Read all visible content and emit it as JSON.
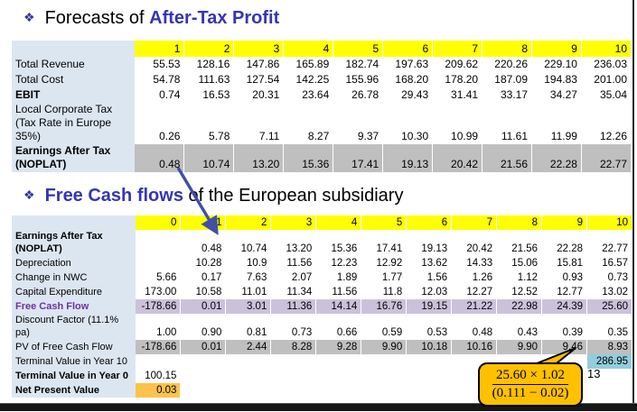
{
  "page": {
    "number": "13"
  },
  "titles": {
    "title1": {
      "bullet": "❖",
      "prefix": "Forecasts of ",
      "highlight": "After-Tax Profit"
    },
    "title2": {
      "bullet": "❖",
      "highlight": "Free Cash flows",
      "suffix": " of the European subsidiary"
    }
  },
  "colors": {
    "label_column_bg": "#DCE6F1",
    "header_bg": "#FFFF00",
    "gray_row_bg": "#BFBFBF",
    "lavender_row_bg": "#CCC1DA",
    "teal_cell_bg": "#93CDDD",
    "amber_cell_bg": "#FBC34B",
    "title_highlight": "#3535B5",
    "purple_label": "#7030A0",
    "arrow_blue": "#3F4FA8",
    "callout_fill": "#FFC000"
  },
  "tables": {
    "after_tax_profit": {
      "label_col_width": 136,
      "header": [
        "1",
        "2",
        "3",
        "4",
        "5",
        "6",
        "7",
        "8",
        "9",
        "10"
      ],
      "rows": [
        {
          "label": "Total Revenue",
          "values": [
            "55.53",
            "128.16",
            "147.86",
            "165.89",
            "182.74",
            "197.63",
            "209.62",
            "220.26",
            "229.10",
            "236.03"
          ]
        },
        {
          "label": "Total Cost",
          "values": [
            "54.78",
            "111.63",
            "127.54",
            "142.25",
            "155.96",
            "168.20",
            "178.20",
            "187.09",
            "194.83",
            "201.00"
          ]
        },
        {
          "label": "EBIT",
          "bold": true,
          "values": [
            "0.74",
            "16.53",
            "20.31",
            "23.64",
            "26.78",
            "29.43",
            "31.41",
            "33.17",
            "34.27",
            "35.04"
          ]
        },
        {
          "label": "Local Corporate Tax (Tax Rate in Europe 35%)",
          "values": [
            "0.26",
            "5.78",
            "7.11",
            "8.27",
            "9.37",
            "10.30",
            "10.99",
            "11.61",
            "11.99",
            "12.26"
          ]
        },
        {
          "label": "Earnings After Tax (NOPLAT)",
          "bold": true,
          "data_bg": "gray",
          "values": [
            "0.48",
            "10.74",
            "13.20",
            "15.36",
            "17.41",
            "19.13",
            "20.42",
            "21.56",
            "22.28",
            "22.77"
          ]
        }
      ]
    },
    "free_cash_flows": {
      "label_col_width": 137,
      "header": [
        "0",
        "1",
        "2",
        "3",
        "4",
        "5",
        "6",
        "7",
        "8",
        "9",
        "10"
      ],
      "rows": [
        {
          "label": "Earnings After Tax (NOPLAT)",
          "bold": true,
          "values": [
            "",
            "0.48",
            "10.74",
            "13.20",
            "15.36",
            "17.41",
            "19.13",
            "20.42",
            "21.56",
            "22.28",
            "22.77"
          ]
        },
        {
          "label": "Depreciation",
          "values": [
            "",
            "10.28",
            "10.9",
            "11.56",
            "12.23",
            "12.92",
            "13.62",
            "14.33",
            "15.06",
            "15.81",
            "16.57"
          ]
        },
        {
          "label": "Change in NWC",
          "values": [
            "5.66",
            "0.17",
            "7.63",
            "2.07",
            "1.89",
            "1.77",
            "1.56",
            "1.26",
            "1.12",
            "0.93",
            "0.73"
          ]
        },
        {
          "label": "Capital Expenditure",
          "values": [
            "173.00",
            "10.58",
            "11.01",
            "11.34",
            "11.56",
            "11.8",
            "12.03",
            "12.27",
            "12.52",
            "12.77",
            "13.02"
          ]
        },
        {
          "label": "Free Cash Flow",
          "bold": true,
          "label_class": "label-purple",
          "data_bg": "lavender",
          "values": [
            "-178.66",
            "0.01",
            "3.01",
            "11.36",
            "14.14",
            "16.76",
            "19.15",
            "21.22",
            "22.98",
            "24.39",
            "25.60"
          ]
        },
        {
          "label": "Discount Factor (11.1% pa)",
          "values": [
            "1.00",
            "0.90",
            "0.81",
            "0.73",
            "0.66",
            "0.59",
            "0.53",
            "0.48",
            "0.43",
            "0.39",
            "0.35"
          ]
        },
        {
          "label": "PV of Free Cash Flow",
          "data_bg": "gray",
          "values": [
            "-178.66",
            "0.01",
            "2.44",
            "8.28",
            "9.28",
            "9.90",
            "10.18",
            "10.16",
            "9.90",
            "9.46",
            "8.93"
          ]
        },
        {
          "label": "Terminal Value in Year 10",
          "values": [
            "",
            "",
            "",
            "",
            "",
            "",
            "",
            "",
            "",
            "",
            "286.95"
          ],
          "cell_bg": {
            "10": "teal"
          }
        },
        {
          "label": "Terminal Value in Year 0",
          "bold": true,
          "values": [
            "100.15",
            "",
            "",
            "",
            "",
            "",
            "",
            "",
            "",
            "",
            ""
          ]
        },
        {
          "label": "Net Present Value",
          "bold": true,
          "values": [
            "0.03",
            "",
            "",
            "",
            "",
            "",
            "",
            "",
            "",
            "",
            ""
          ],
          "cell_bg": {
            "0": "amber"
          }
        }
      ]
    }
  },
  "callout": {
    "numerator": "25.60 × 1.02",
    "denominator": "(0.111 − 0.02)"
  }
}
